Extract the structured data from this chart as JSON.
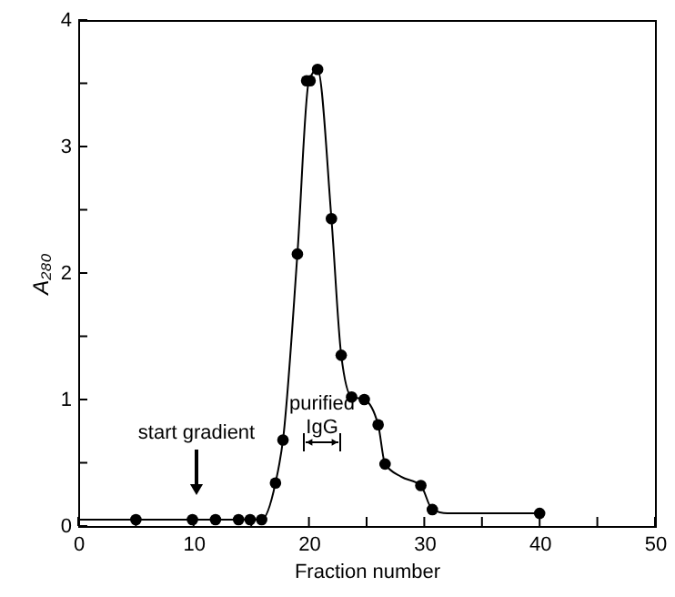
{
  "chart_data": {
    "type": "line",
    "xlabel": "Fraction number",
    "ylabel": "A₂₈₀",
    "xlim": [
      0,
      50
    ],
    "xticks": [
      0,
      {
        "value": 5,
        "label": null
      },
      10,
      {
        "value": 15,
        "label": null
      },
      20,
      {
        "value": 25,
        "label": null
      },
      30,
      {
        "value": 35,
        "label": null
      },
      40,
      {
        "value": 45,
        "label": null
      },
      50
    ],
    "ylim": [
      0,
      4
    ],
    "yticks": [
      0,
      {
        "value": 0.5,
        "label": null
      },
      1,
      {
        "value": 1.5,
        "label": null
      },
      2,
      {
        "value": 2.5,
        "label": null
      },
      3,
      {
        "value": 3.5,
        "label": null
      },
      4
    ],
    "grid": false,
    "series": [
      {
        "color": "#000000",
        "marker": "none",
        "x": [
          0,
          5,
          9.9,
          11.9,
          13.9,
          14.9,
          15.9,
          17.1,
          17.75,
          19.0,
          20.0,
          20.75,
          21.95,
          22.8,
          23.7,
          24.8,
          26.0,
          26.6,
          28.0,
          29.7,
          30.7,
          32.0,
          40.0
        ],
        "values": [
          0.05,
          0.05,
          0.05,
          0.05,
          0.05,
          0.05,
          0.05,
          0.34,
          0.68,
          2.15,
          3.52,
          3.61,
          2.43,
          1.35,
          1.02,
          1.0,
          0.8,
          0.49,
          0.39,
          0.32,
          0.13,
          0.1,
          0.1
        ]
      },
      {
        "type": "scatter",
        "color": "#000000",
        "marker": "circle",
        "x": [
          5,
          9.9,
          11.9,
          13.9,
          14.9,
          15.9,
          17.1,
          17.75,
          19.0,
          19.8,
          20.1,
          20.75,
          21.95,
          22.8,
          23.7,
          24.8,
          26.0,
          26.6,
          29.7,
          30.7,
          40.0
        ],
        "values": [
          0.05,
          0.05,
          0.05,
          0.05,
          0.05,
          0.05,
          0.34,
          0.68,
          2.15,
          3.52,
          3.52,
          3.61,
          2.43,
          1.35,
          1.02,
          1.0,
          0.8,
          0.49,
          0.32,
          0.13,
          0.1
        ]
      }
    ],
    "annotations": [
      "start gradient",
      "purified\nIgG"
    ]
  }
}
